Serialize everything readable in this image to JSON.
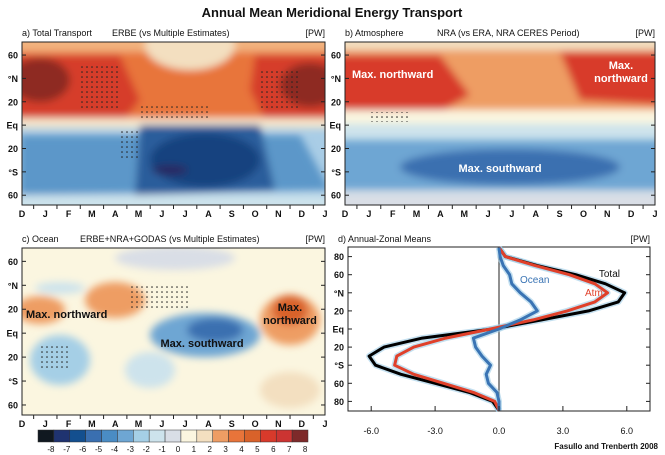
{
  "title": "Annual Mean Meridional Energy Transport",
  "credit": "Fasullo and Trenberth 2008",
  "colorbar": {
    "labels": [
      "-8",
      "-7",
      "-6",
      "-5",
      "-4",
      "-3",
      "-2",
      "-1",
      "0",
      "1",
      "2",
      "3",
      "4",
      "5",
      "6",
      "7",
      "8"
    ],
    "colors": [
      "#101820",
      "#1f3370",
      "#134f8f",
      "#3a6fb0",
      "#4a8cc4",
      "#6ea6d3",
      "#a5cfe6",
      "#cde3ec",
      "#d9dee6",
      "#fbf6e0",
      "#f3dfc0",
      "#ee9d64",
      "#e8743a",
      "#d9622a",
      "#d83a2b",
      "#cc3432",
      "#7e2a2a"
    ]
  },
  "chart_data": [
    {
      "type": "heatmap",
      "panel": "a) Total Transport",
      "title": "ERBE (vs Multiple Estimates)",
      "units": "[PW]",
      "x_tick_labels": [
        "D",
        "J",
        "F",
        "M",
        "A",
        "M",
        "J",
        "J",
        "A",
        "S",
        "O",
        "N",
        "D",
        "J"
      ],
      "y_tick_labels": [
        "60",
        "°N",
        "20",
        "Eq",
        "20",
        "°S",
        "60"
      ],
      "annotations": []
    },
    {
      "type": "heatmap",
      "panel": "b) Atmosphere",
      "title": "NRA (vs ERA, NRA CERES Period)",
      "units": "[PW]",
      "x_tick_labels": [
        "D",
        "J",
        "F",
        "M",
        "A",
        "M",
        "J",
        "J",
        "A",
        "S",
        "O",
        "N",
        "D",
        "J"
      ],
      "y_tick_labels": [
        "60",
        "°N",
        "20",
        "Eq",
        "20",
        "°S",
        "60"
      ],
      "annotations": [
        "Max. northward",
        "Max.",
        "northward",
        "Max. southward"
      ]
    },
    {
      "type": "heatmap",
      "panel": "c) Ocean",
      "title": "ERBE+NRA+GODAS (vs Multiple Estimates)",
      "units": "[PW]",
      "x_tick_labels": [
        "D",
        "J",
        "F",
        "M",
        "A",
        "M",
        "J",
        "J",
        "A",
        "S",
        "O",
        "N",
        "D",
        "J"
      ],
      "y_tick_labels": [
        "60",
        "°N",
        "20",
        "Eq",
        "20",
        "°S",
        "60"
      ],
      "annotations": [
        "Max. northward",
        "Max. southward",
        "Max.",
        "northward"
      ]
    },
    {
      "type": "line",
      "panel": "d) Annual-Zonal Means",
      "units": "[PW]",
      "x_tick_labels": [
        "-6.0",
        "-3.0",
        "0.0",
        "3.0",
        "6.0"
      ],
      "y_tick_labels": [
        "80",
        "60",
        "°N",
        "20",
        "Eq",
        "20",
        "°S",
        "60",
        "80"
      ],
      "xlim": [
        -7,
        7
      ],
      "ylim": [
        -90,
        90
      ],
      "lat": [
        90,
        80,
        70,
        60,
        50,
        40,
        30,
        20,
        10,
        0,
        -10,
        -20,
        -30,
        -40,
        -50,
        -60,
        -70,
        -80,
        -90
      ],
      "series": [
        {
          "name": "Total",
          "color": "#000000",
          "values": [
            0,
            0.3,
            1.8,
            3.6,
            5.0,
            5.9,
            5.6,
            4.2,
            2.0,
            -0.3,
            -3.6,
            -5.4,
            -6.1,
            -5.8,
            -4.6,
            -3.0,
            -1.4,
            -0.3,
            0
          ]
        },
        {
          "name": "Atm",
          "color": "#e0402a",
          "values": [
            0,
            0.3,
            1.7,
            3.3,
            4.5,
            5.1,
            4.5,
            3.2,
            1.6,
            -0.4,
            -2.5,
            -4.0,
            -4.8,
            -4.9,
            -4.0,
            -2.6,
            -1.2,
            -0.2,
            0
          ]
        },
        {
          "name": "Ocean",
          "color": "#3a74b4",
          "values": [
            0,
            0.05,
            0.2,
            0.5,
            0.6,
            1.0,
            1.5,
            1.8,
            1.0,
            0,
            -1.2,
            -1.1,
            -0.8,
            -0.4,
            -0.6,
            -0.5,
            -0.1,
            0,
            0
          ]
        }
      ]
    }
  ]
}
